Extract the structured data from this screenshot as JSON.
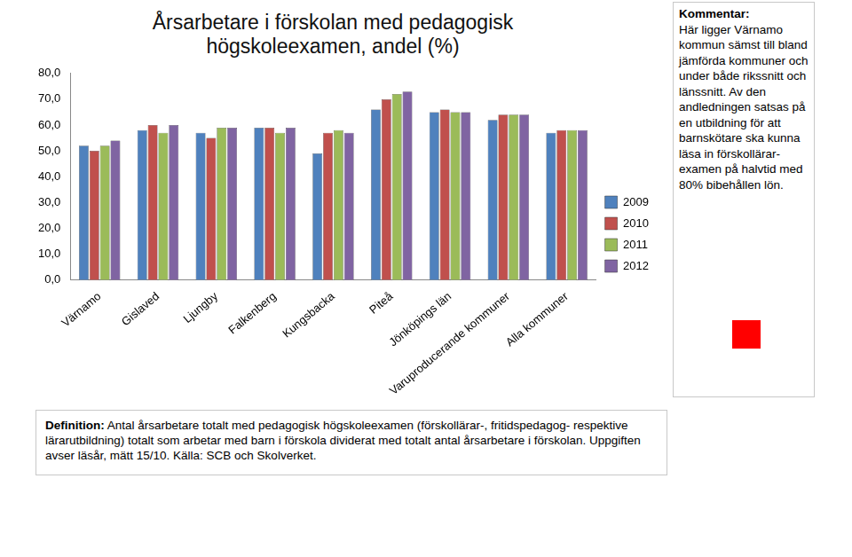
{
  "chart_data": {
    "type": "bar",
    "title": "Årsarbetare i förskolan med pedagogisk högskoleexamen, andel (%)",
    "categories": [
      "Värnamo",
      "Gislaved",
      "Ljungby",
      "Falkenberg",
      "Kungsbacka",
      "Piteå",
      "Jönköpings län",
      "Varuproducerande kommuner",
      "Alla kommuner"
    ],
    "series": [
      {
        "name": "2009",
        "color": "#4f81bd",
        "values": [
          52,
          58,
          57,
          59,
          49,
          66,
          65,
          62,
          57
        ]
      },
      {
        "name": "2010",
        "color": "#c0504d",
        "values": [
          50,
          60,
          55,
          59,
          57,
          70,
          66,
          64,
          58
        ]
      },
      {
        "name": "2011",
        "color": "#9bbb59",
        "values": [
          52,
          57,
          59,
          57,
          58,
          72,
          65,
          64,
          58
        ]
      },
      {
        "name": "2012",
        "color": "#8064a2",
        "values": [
          54,
          60,
          59,
          59,
          57,
          73,
          65,
          64,
          58
        ]
      }
    ],
    "ylim": [
      0,
      80
    ],
    "yticks": [
      {
        "value": 0,
        "label": "0,0"
      },
      {
        "value": 10,
        "label": "10,0"
      },
      {
        "value": 20,
        "label": "20,0"
      },
      {
        "value": 30,
        "label": "30,0"
      },
      {
        "value": 40,
        "label": "40,0"
      },
      {
        "value": 50,
        "label": "50,0"
      },
      {
        "value": 60,
        "label": "60,0"
      },
      {
        "value": 70,
        "label": "70,0"
      },
      {
        "value": 80,
        "label": "80,0"
      }
    ],
    "grid": false,
    "legend": "right"
  },
  "comment": {
    "label": "Kommentar:",
    "text": "Här ligger Värnamo kommun sämst till bland jämförda kommuner och under både rikssnitt och länssnitt. Av den andledningen satsas på en utbildning för att barnskötare ska kunna läsa in förskollärar-examen på halvtid med 80% bibehållen lön."
  },
  "definition": {
    "label": "Definition:",
    "text": "Antal årsarbetare totalt med pedagogisk högskoleexamen (förskollärar-, fritidspedagog- respektive lärarutbildning) totalt som arbetar med barn i förskola dividerat med totalt antal årsarbetare i förskolan. Uppgiften avser läsår, mätt 15/10. Källa: SCB och Skolverket."
  }
}
